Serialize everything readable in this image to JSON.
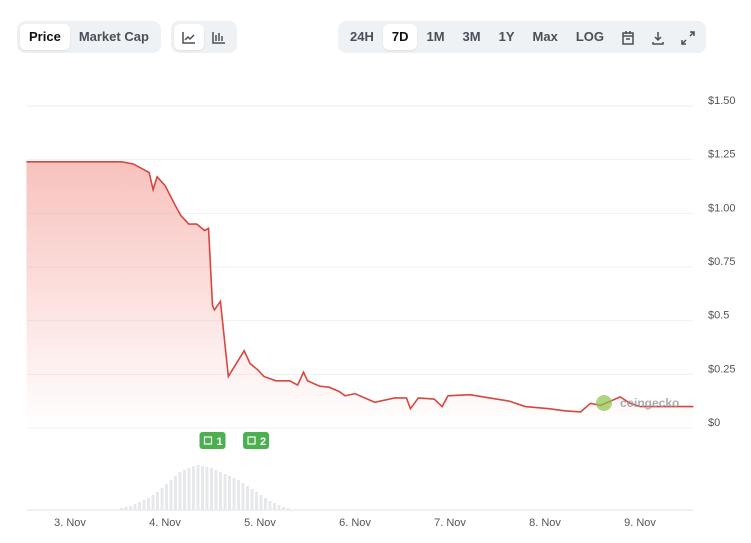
{
  "toolbar": {
    "metric_tabs": [
      {
        "label": "Price",
        "active": true
      },
      {
        "label": "Market Cap",
        "active": false
      }
    ],
    "chart_style": [
      {
        "icon": "line-chart-icon",
        "active": true
      },
      {
        "icon": "candlestick-chart-icon",
        "active": false
      }
    ],
    "ranges": [
      {
        "label": "24H",
        "active": false
      },
      {
        "label": "7D",
        "active": true
      },
      {
        "label": "1M",
        "active": false
      },
      {
        "label": "3M",
        "active": false
      },
      {
        "label": "1Y",
        "active": false
      },
      {
        "label": "Max",
        "active": false
      },
      {
        "label": "LOG",
        "active": false
      }
    ],
    "icons": [
      "calendar-icon",
      "download-icon",
      "fullscreen-icon"
    ]
  },
  "chart_data": {
    "type": "area",
    "line_color": "#d8473f",
    "fill_color": "#f4a19a",
    "y_ticks": [
      "$0",
      "$0.25",
      "$0.5",
      "$0.75",
      "$1.00",
      "$1.25",
      "$1.50"
    ],
    "y_tick_values": [
      0,
      0.25,
      0.5,
      0.75,
      1.0,
      1.25,
      1.5
    ],
    "ylim": [
      0,
      1.5
    ],
    "x_ticks": [
      "3. Nov",
      "4. Nov",
      "5. Nov",
      "6. Nov",
      "7. Nov",
      "8. Nov",
      "9. Nov"
    ],
    "grid": true,
    "points": [
      [
        "Nov 2 13:00",
        1.24
      ],
      [
        "Nov 3 13:00",
        1.24
      ],
      [
        "Nov 3 16:00",
        1.23
      ],
      [
        "Nov 3 20:00",
        1.19
      ],
      [
        "Nov 3 21:00",
        1.11
      ],
      [
        "Nov 3 22:00",
        1.17
      ],
      [
        "Nov 4 00:00",
        1.13
      ],
      [
        "Nov 4 02:30",
        1.04
      ],
      [
        "Nov 4 04:00",
        0.99
      ],
      [
        "Nov 4 06:00",
        0.95
      ],
      [
        "Nov 4 08:00",
        0.95
      ],
      [
        "Nov 4 10:00",
        0.92
      ],
      [
        "Nov 4 11:00",
        0.93
      ],
      [
        "Nov 4 12:00",
        0.57
      ],
      [
        "Nov 4 12:30",
        0.55
      ],
      [
        "Nov 4 14:00",
        0.59
      ],
      [
        "Nov 4 16:00",
        0.24
      ],
      [
        "Nov 4 18:00",
        0.3
      ],
      [
        "Nov 4 20:00",
        0.36
      ],
      [
        "Nov 4 21:30",
        0.3
      ],
      [
        "Nov 4 23:30",
        0.27
      ],
      [
        "Nov 5 01:00",
        0.24
      ],
      [
        "Nov 5 04:00",
        0.22
      ],
      [
        "Nov 5 07:30",
        0.22
      ],
      [
        "Nov 5 09:30",
        0.2
      ],
      [
        "Nov 5 11:00",
        0.26
      ],
      [
        "Nov 5 12:00",
        0.22
      ],
      [
        "Nov 5 15:00",
        0.195
      ],
      [
        "Nov 5 17:30",
        0.19
      ],
      [
        "Nov 5 20:00",
        0.17
      ],
      [
        "Nov 5 21:30",
        0.15
      ],
      [
        "Nov 6 00:00",
        0.16
      ],
      [
        "Nov 6 05:00",
        0.12
      ],
      [
        "Nov 6 10:00",
        0.14
      ],
      [
        "Nov 6 13:00",
        0.14
      ],
      [
        "Nov 6 14:00",
        0.09
      ],
      [
        "Nov 6 16:00",
        0.14
      ],
      [
        "Nov 6 20:00",
        0.135
      ],
      [
        "Nov 6 22:00",
        0.1
      ],
      [
        "Nov 6 23:30",
        0.15
      ],
      [
        "Nov 7 05:00",
        0.155
      ],
      [
        "Nov 7 10:00",
        0.14
      ],
      [
        "Nov 7 15:00",
        0.125
      ],
      [
        "Nov 7 19:00",
        0.1
      ],
      [
        "Nov 8 01:00",
        0.09
      ],
      [
        "Nov 8 05:00",
        0.08
      ],
      [
        "Nov 8 09:00",
        0.075
      ],
      [
        "Nov 8 11:30",
        0.115
      ],
      [
        "Nov 8 14:00",
        0.105
      ],
      [
        "Nov 8 19:00",
        0.145
      ],
      [
        "Nov 8 21:30",
        0.115
      ],
      [
        "Nov 9 00:00",
        0.1
      ],
      [
        "Nov 9 13:30",
        0.1
      ]
    ],
    "volume_relative": [
      2,
      3,
      4,
      6,
      8,
      10,
      12,
      15,
      18,
      22,
      26,
      30,
      34,
      38,
      40,
      42,
      44,
      45,
      44,
      43,
      42,
      40,
      38,
      36,
      34,
      32,
      30,
      27,
      24,
      21,
      18,
      15,
      12,
      9,
      7,
      5,
      3,
      2
    ],
    "events": [
      {
        "label": "1",
        "date": "Nov 4 12:00"
      },
      {
        "label": "2",
        "date": "Nov 4 23:00"
      }
    ],
    "watermark": "coingecko",
    "event_color": "#4caf50"
  }
}
